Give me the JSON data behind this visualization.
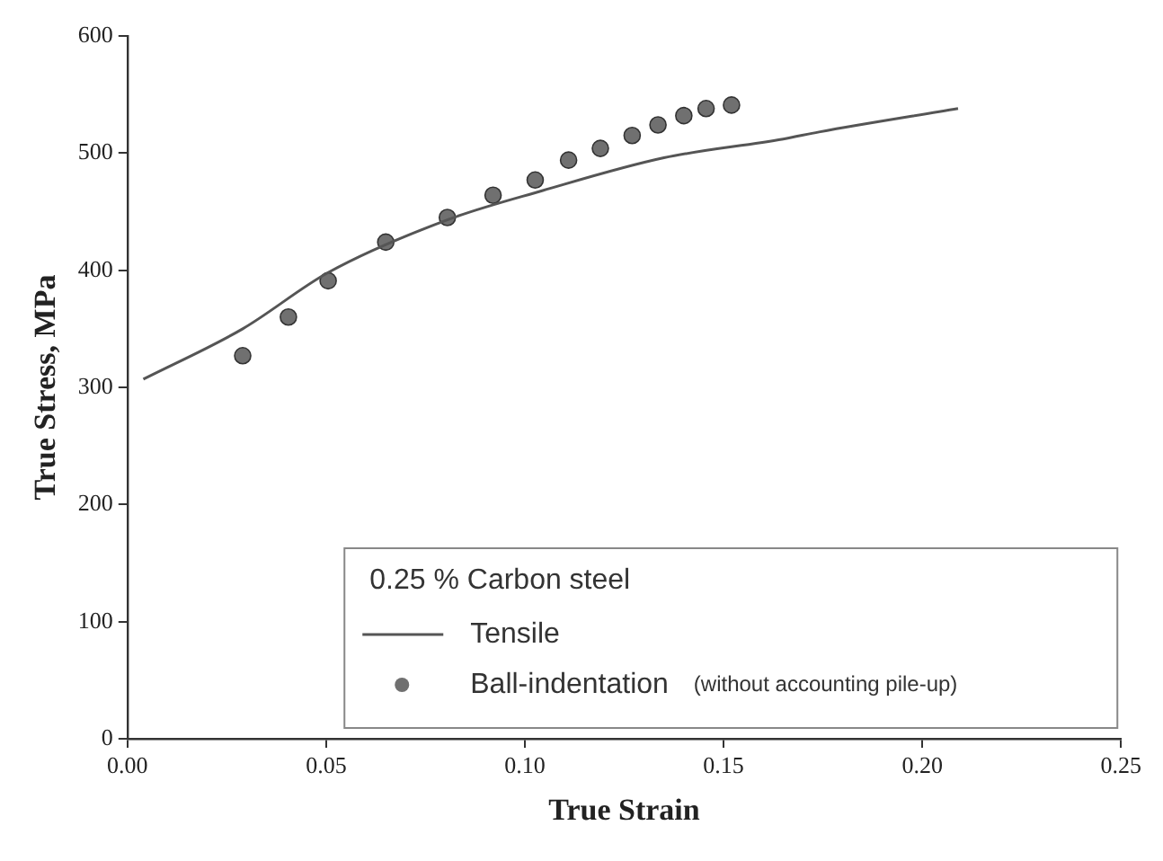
{
  "chart_data": {
    "type": "scatter",
    "xlabel": "True Strain",
    "ylabel": "True Stress, MPa",
    "legend_title": "0.25 % Carbon steel",
    "legend": "bottom",
    "grid": false,
    "xlim": [
      0,
      0.25
    ],
    "xticks": [
      {
        "value": 0,
        "label": "0.00"
      },
      0.05,
      {
        "value": 0.1,
        "label": "0.10"
      },
      0.15,
      {
        "value": 0.2,
        "label": "0.20"
      },
      0.25
    ],
    "ylim": [
      0,
      600
    ],
    "yticks": [
      0,
      100,
      200,
      300,
      400,
      500,
      600
    ],
    "series": [
      {
        "name": "Tensile",
        "type": "line",
        "color": "#555555",
        "marker": "none",
        "line_style": "solid",
        "x": [
          0.004,
          0.029,
          0.0505,
          0.0805,
          0.1045,
          0.135,
          0.165,
          0.174,
          0.209
        ],
        "values": [
          307,
          350,
          398,
          443,
          468,
          496,
          512,
          518,
          538
        ]
      },
      {
        "name": "Ball-indentation",
        "type": "scatter",
        "color": "#707070",
        "marker": "circle",
        "x": [
          0.029,
          0.0405,
          0.0505,
          0.065,
          0.0805,
          0.092,
          0.1026,
          0.111,
          0.119,
          0.127,
          0.1335,
          0.14,
          0.1456,
          0.152
        ],
        "values": [
          327,
          360,
          391,
          424,
          445,
          464,
          477,
          494,
          504,
          515,
          524,
          532,
          538,
          541
        ]
      }
    ],
    "annotations": [
      "(without accounting pile-up)"
    ]
  }
}
